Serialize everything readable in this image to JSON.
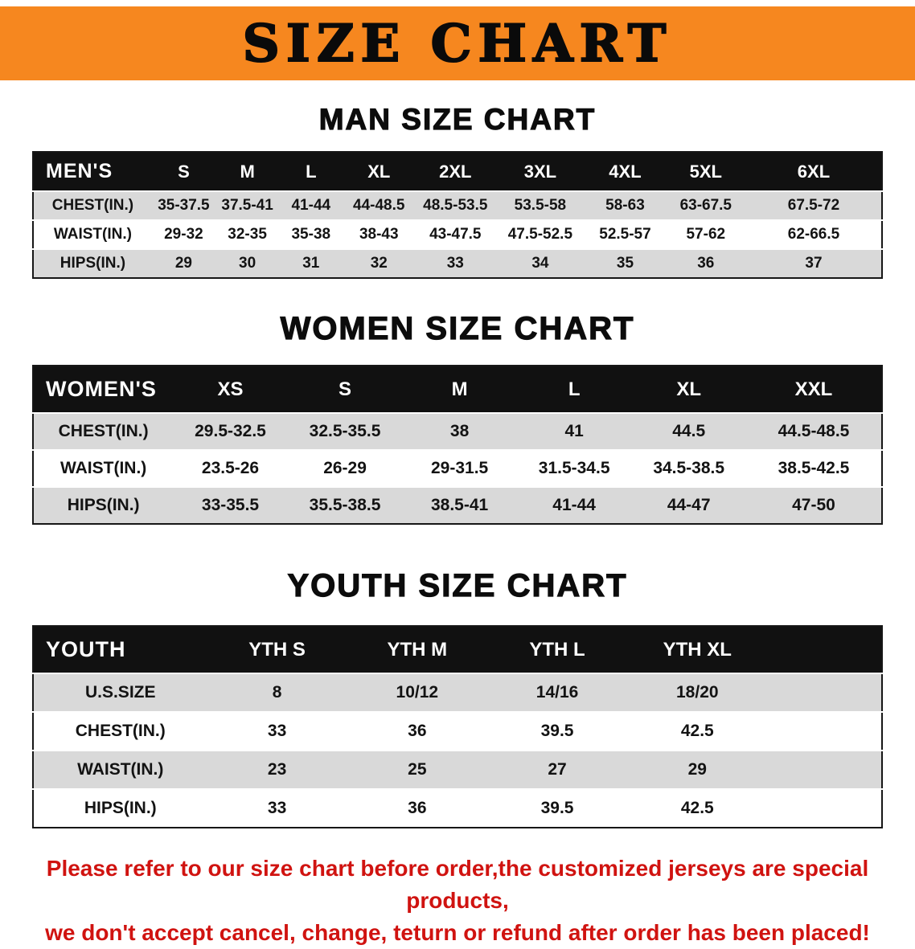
{
  "banner": {
    "title": "SIZE CHART"
  },
  "colors": {
    "banner_bg": "#f6871f",
    "table_header_bg": "#111111",
    "row_alt_bg": "#d9d9d9",
    "disclaimer_red": "#d01310"
  },
  "sections": {
    "men": {
      "heading": "MAN SIZE CHART",
      "table": {
        "header": [
          "MEN'S",
          "S",
          "M",
          "L",
          "XL",
          "2XL",
          "3XL",
          "4XL",
          "5XL",
          "6XL"
        ],
        "rows": [
          [
            "CHEST(IN.)",
            "35-37.5",
            "37.5-41",
            "41-44",
            "44-48.5",
            "48.5-53.5",
            "53.5-58",
            "58-63",
            "63-67.5",
            "67.5-72"
          ],
          [
            "WAIST(IN.)",
            "29-32",
            "32-35",
            "35-38",
            "38-43",
            "43-47.5",
            "47.5-52.5",
            "52.5-57",
            "57-62",
            "62-66.5"
          ],
          [
            "HIPS(IN.)",
            "29",
            "30",
            "31",
            "32",
            "33",
            "34",
            "35",
            "36",
            "37"
          ]
        ]
      }
    },
    "women": {
      "heading": "WOMEN SIZE CHART",
      "table": {
        "header": [
          "WOMEN'S",
          "XS",
          "S",
          "M",
          "L",
          "XL",
          "XXL"
        ],
        "rows": [
          [
            "CHEST(IN.)",
            "29.5-32.5",
            "32.5-35.5",
            "38",
            "41",
            "44.5",
            "44.5-48.5"
          ],
          [
            "WAIST(IN.)",
            "23.5-26",
            "26-29",
            "29-31.5",
            "31.5-34.5",
            "34.5-38.5",
            "38.5-42.5"
          ],
          [
            "HIPS(IN.)",
            "33-35.5",
            "35.5-38.5",
            "38.5-41",
            "41-44",
            "44-47",
            "47-50"
          ]
        ]
      }
    },
    "youth": {
      "heading": "YOUTH SIZE CHART",
      "table": {
        "header": [
          "YOUTH",
          "YTH S",
          "YTH M",
          "YTH L",
          "YTH XL"
        ],
        "rows": [
          [
            "U.S.SIZE",
            "8",
            "10/12",
            "14/16",
            "18/20"
          ],
          [
            "CHEST(IN.)",
            "33",
            "36",
            "39.5",
            "42.5"
          ],
          [
            "WAIST(IN.)",
            "23",
            "25",
            "27",
            "29"
          ],
          [
            "HIPS(IN.)",
            "33",
            "36",
            "39.5",
            "42.5"
          ]
        ]
      }
    }
  },
  "disclaimer": {
    "line1": "Please refer to our size chart before order,the customized jerseys are special products,",
    "line2": "we don't accept cancel, change, teturn or refund after order has been placed!"
  }
}
